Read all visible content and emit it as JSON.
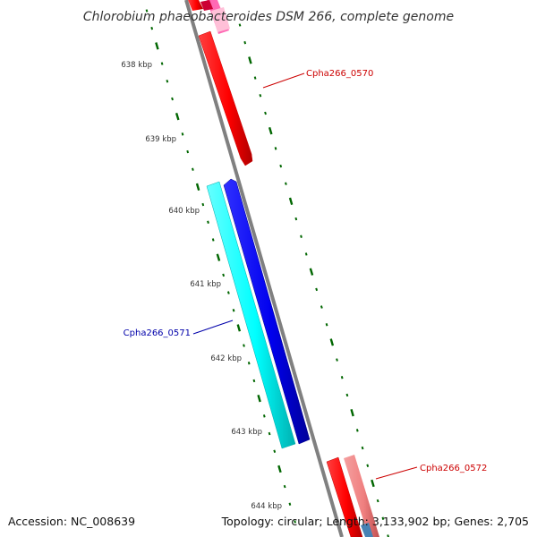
{
  "title": "Chlorobium phaeobacteroides DSM 266, complete genome",
  "accession": "Accession: NC_008639",
  "summary": "Topology: circular; Length: 3,133,902 bp; Genes: 2,705",
  "kbp_ticks": [
    "638 kbp",
    "639 kbp",
    "640 kbp",
    "641 kbp",
    "642 kbp",
    "643 kbp",
    "644 kbp"
  ],
  "gene_labels": [
    {
      "name": "Cpha266_0570",
      "color": "#cc0000"
    },
    {
      "name": "Cpha266_0571",
      "color": "#0000aa"
    },
    {
      "name": "Cpha266_0572",
      "color": "#cc0000"
    }
  ],
  "colors": {
    "backbone": "#808080",
    "tick": "#006600",
    "forward_gene": "#ff0000",
    "forward_gene_light": "#f08080",
    "reverse_gene_cyan": "#00ffff",
    "reverse_gene_blue": "#0000ee",
    "pink_gene": "#ff69b4",
    "steel_gene": "#4682b4"
  }
}
